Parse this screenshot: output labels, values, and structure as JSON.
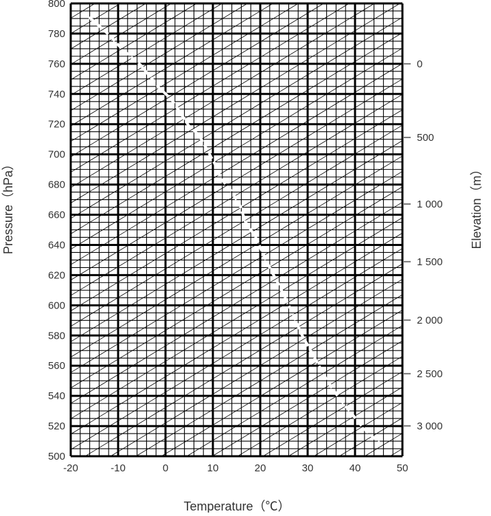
{
  "chart_data": {
    "type": "line",
    "xlabel": "Temperature（℃）",
    "ylabel": "Pressure（hPa）",
    "y2label": "Elevation（m）",
    "xlim": [
      -20,
      50
    ],
    "ylim": [
      500,
      800
    ],
    "x_ticks": [
      "-20",
      "-10",
      "0",
      "10",
      "20",
      "30",
      "40",
      "50"
    ],
    "x_tick_values": [
      -20,
      -10,
      0,
      10,
      20,
      30,
      40,
      50
    ],
    "y_ticks": [
      "500",
      "520",
      "540",
      "560",
      "580",
      "600",
      "620",
      "640",
      "660",
      "680",
      "700",
      "720",
      "740",
      "760",
      "780",
      "800"
    ],
    "y_tick_values": [
      500,
      520,
      540,
      560,
      580,
      600,
      620,
      640,
      660,
      680,
      700,
      720,
      740,
      760,
      780,
      800
    ],
    "x_minor_step": 2,
    "y_minor_step": 5,
    "grid": true,
    "y2_ticks": [
      {
        "label": "0",
        "pressure": 760
      },
      {
        "label": "500",
        "pressure": 711.2
      },
      {
        "label": "1 000",
        "pressure": 667.1
      },
      {
        "label": "1 500",
        "pressure": 628.9
      },
      {
        "label": "2 000",
        "pressure": 590.2
      },
      {
        "label": "2 500",
        "pressure": 554.7
      },
      {
        "label": "3 000",
        "pressure": 520.1
      }
    ],
    "series": [
      {
        "style": "white-dashed",
        "x": [
          -16.1,
          -11.7,
          -9.1,
          -5.2,
          -1.3,
          1.3,
          4.9,
          7.1,
          10.3,
          11.7,
          13.8,
          15.8,
          16.8,
          19.0,
          20.3,
          22.0,
          23.8,
          25.7,
          27.1,
          28.6,
          30.6,
          32.6,
          34.2,
          36.5,
          39.4,
          41.9,
          45.5
        ],
        "y": [
          790.9,
          778.6,
          769.5,
          759.0,
          744.0,
          736.3,
          719.0,
          712.6,
          694.4,
          684.0,
          676.2,
          665.7,
          655.7,
          645.2,
          636.1,
          624.8,
          614.3,
          602.0,
          592.9,
          581.5,
          570.1,
          558.7,
          549.6,
          539.2,
          527.8,
          518.2,
          507.8
        ]
      }
    ],
    "colors": {
      "grid": "#000000",
      "axis_text": "#333333",
      "y2_tick": "#777777",
      "series": "#ffffff"
    }
  }
}
